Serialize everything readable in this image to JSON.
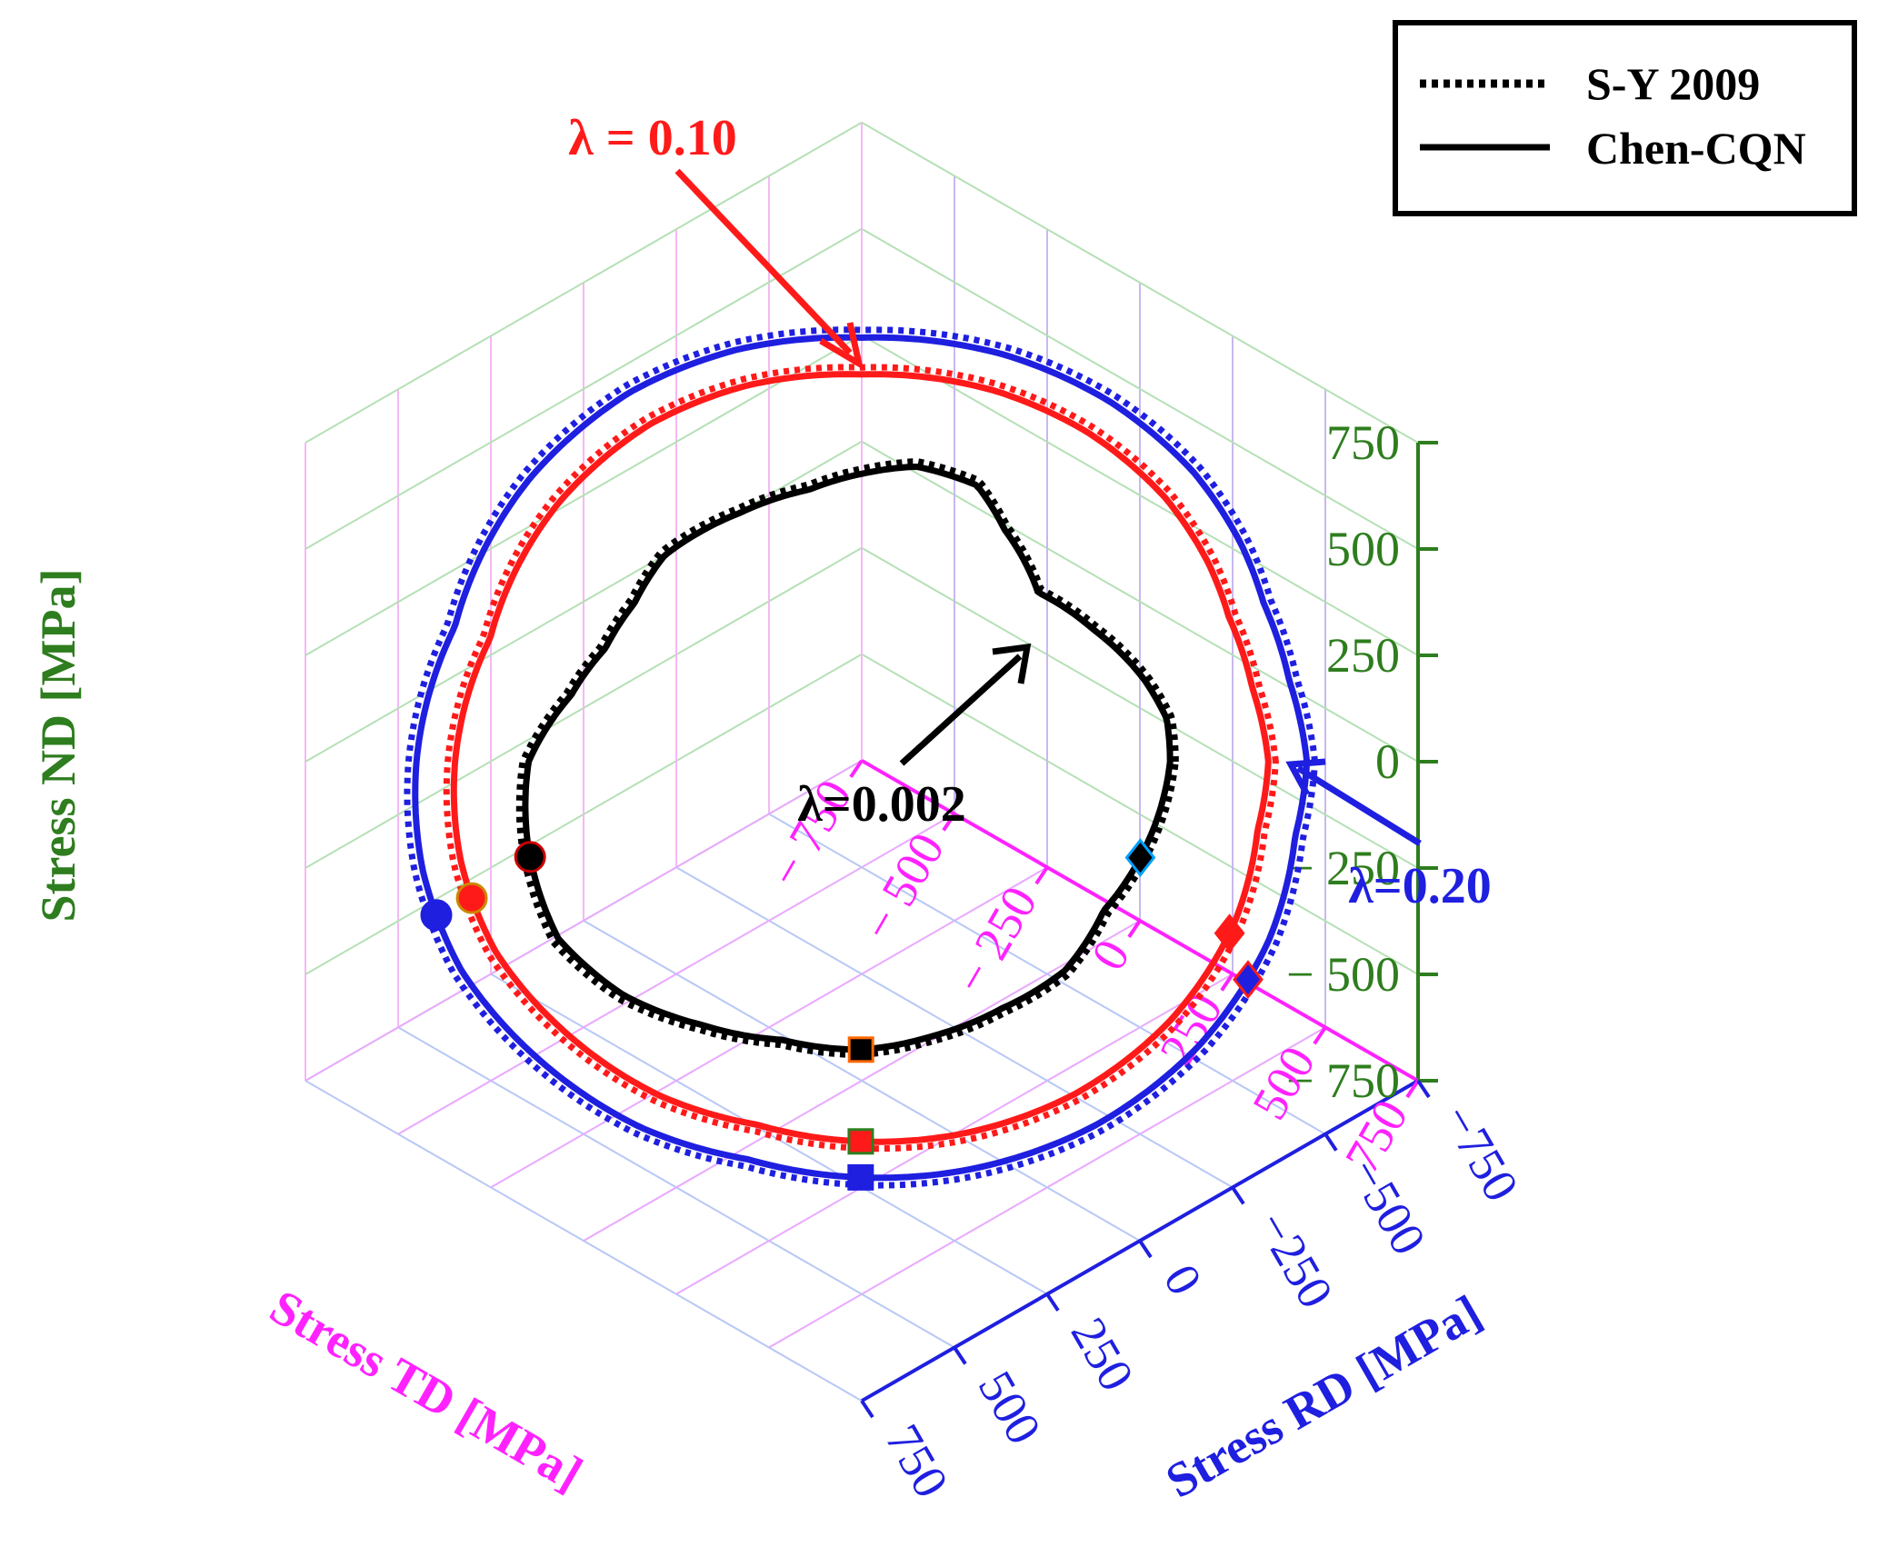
{
  "chart_data": {
    "type": "line",
    "subtype": "3d-yield-surface-sections",
    "axes": {
      "nd": {
        "label": "Stress ND [MPa]",
        "ticks": [
          "750",
          "500",
          "250",
          "0",
          "− 250",
          "− 500",
          "− 750"
        ],
        "range": [
          -750,
          750
        ],
        "color": "#2e7d1e"
      },
      "td": {
        "label": "Stress TD [MPa]",
        "ticks": [
          "− 750",
          "− 500",
          "− 250",
          "0",
          "250",
          "500",
          "750"
        ],
        "range": [
          -750,
          750
        ],
        "color": "#ff22ff"
      },
      "rd": {
        "label": "Stress RD [MPa]",
        "ticks": [
          "750",
          "500",
          "250",
          "0",
          "−250",
          "−500",
          "−750"
        ],
        "range": [
          750,
          -750
        ],
        "color": "#1f1fe0"
      }
    },
    "grid": true,
    "legend": {
      "position": "top-right",
      "entries": [
        {
          "label": "S-Y 2009",
          "style": "dotted"
        },
        {
          "label": "Chen-CQN",
          "style": "solid"
        }
      ]
    },
    "annotations": [
      {
        "text": "λ = 0.10",
        "color": "#ff1a1a",
        "target": "red"
      },
      {
        "text": "λ=0.002",
        "color": "#000000",
        "target": "black"
      },
      {
        "text": "λ=0.20",
        "color": "#1f1fe0",
        "target": "blue"
      }
    ],
    "series": [
      {
        "name": "λ=0.002",
        "color": "#000000",
        "curve_radius": 320,
        "curve_shape": [
          [
            0.0,
            1.0
          ],
          [
            0.15,
            1.0
          ],
          [
            0.3,
            0.96
          ],
          [
            0.55,
            0.88
          ],
          [
            0.8,
            0.82
          ],
          [
            1.05,
            0.93
          ],
          [
            1.2,
            1.03
          ],
          [
            1.4,
            1.04
          ],
          [
            1.57,
            1.0
          ],
          [
            1.75,
            0.96
          ],
          [
            2.0,
            0.95
          ],
          [
            2.3,
            0.96
          ],
          [
            2.5,
            0.92
          ],
          [
            2.7,
            0.92
          ],
          [
            2.9,
            0.97
          ],
          [
            3.14,
            1.08
          ],
          [
            3.4,
            1.12
          ],
          [
            3.7,
            1.16
          ],
          [
            3.95,
            1.12
          ],
          [
            4.2,
            1.05
          ],
          [
            4.45,
            1.0
          ],
          [
            4.71,
            1.0
          ],
          [
            4.95,
            0.98
          ],
          [
            5.2,
            0.97
          ],
          [
            5.45,
            0.98
          ],
          [
            5.7,
            0.94
          ],
          [
            6.0,
            0.97
          ],
          [
            6.283,
            1.0
          ]
        ],
        "markers": [
          {
            "shape": "circle",
            "angle": 3.44,
            "fill": "#000000",
            "edge": "#cc0000"
          },
          {
            "shape": "square",
            "angle": 4.71,
            "fill": "#000000",
            "edge": "#ff6600"
          },
          {
            "shape": "diamond",
            "angle": 5.93,
            "fill": "#000000",
            "edge": "#00a0ff"
          }
        ]
      },
      {
        "name": "λ = 0.10",
        "color": "#ff1a1a",
        "curve_radius": 422,
        "curve_shape": [
          [
            0.0,
            1.0
          ],
          [
            0.2,
            0.98
          ],
          [
            0.4,
            0.98
          ],
          [
            0.55,
            1.0
          ],
          [
            0.75,
            1.02
          ],
          [
            1.0,
            1.03
          ],
          [
            1.25,
            1.03
          ],
          [
            1.57,
            1.02
          ],
          [
            1.85,
            1.03
          ],
          [
            2.1,
            1.03
          ],
          [
            2.4,
            1.01
          ],
          [
            2.6,
            0.99
          ],
          [
            2.8,
            0.97
          ],
          [
            3.14,
            1.0
          ],
          [
            3.4,
            1.02
          ],
          [
            3.65,
            1.03
          ],
          [
            3.9,
            1.02
          ],
          [
            4.2,
            1.01
          ],
          [
            4.45,
            0.99
          ],
          [
            4.71,
            1.0
          ],
          [
            4.95,
            1.01
          ],
          [
            5.25,
            1.02
          ],
          [
            5.55,
            1.02
          ],
          [
            5.85,
            1.01
          ],
          [
            6.1,
            0.99
          ],
          [
            6.283,
            1.0
          ]
        ],
        "markers": [
          {
            "shape": "circle",
            "angle": 3.5,
            "fill": "#ff1a1a",
            "edge": "#cc8800"
          },
          {
            "shape": "square",
            "angle": 4.71,
            "fill": "#ff1a1a",
            "edge": "#2e7d1e"
          },
          {
            "shape": "diamond",
            "angle": 5.82,
            "fill": "#ff1a1a",
            "edge": "#ff1a1a"
          }
        ]
      },
      {
        "name": "λ=0.20",
        "color": "#1f1fe0",
        "curve_radius": 462,
        "curve_shape": [
          [
            0.0,
            1.0
          ],
          [
            0.2,
            0.98
          ],
          [
            0.4,
            0.98
          ],
          [
            0.55,
            1.0
          ],
          [
            0.75,
            1.02
          ],
          [
            1.0,
            1.03
          ],
          [
            1.25,
            1.03
          ],
          [
            1.57,
            1.02
          ],
          [
            1.85,
            1.03
          ],
          [
            2.1,
            1.03
          ],
          [
            2.4,
            1.01
          ],
          [
            2.6,
            0.99
          ],
          [
            2.8,
            0.97
          ],
          [
            3.14,
            1.0
          ],
          [
            3.4,
            1.02
          ],
          [
            3.65,
            1.03
          ],
          [
            3.9,
            1.02
          ],
          [
            4.2,
            1.01
          ],
          [
            4.45,
            0.99
          ],
          [
            4.71,
            1.0
          ],
          [
            4.95,
            1.01
          ],
          [
            5.25,
            1.02
          ],
          [
            5.55,
            1.02
          ],
          [
            5.85,
            1.01
          ],
          [
            6.1,
            0.99
          ],
          [
            6.283,
            1.0
          ]
        ],
        "markers": [
          {
            "shape": "circle",
            "angle": 3.51,
            "fill": "#1f1fe0",
            "edge": "#1f1fe0"
          },
          {
            "shape": "square",
            "angle": 4.71,
            "fill": "#1f1fe0",
            "edge": "#1f1fe0"
          },
          {
            "shape": "diamond",
            "angle": 5.74,
            "fill": "#1f1fe0",
            "edge": "#ff1a1a"
          }
        ]
      }
    ]
  }
}
